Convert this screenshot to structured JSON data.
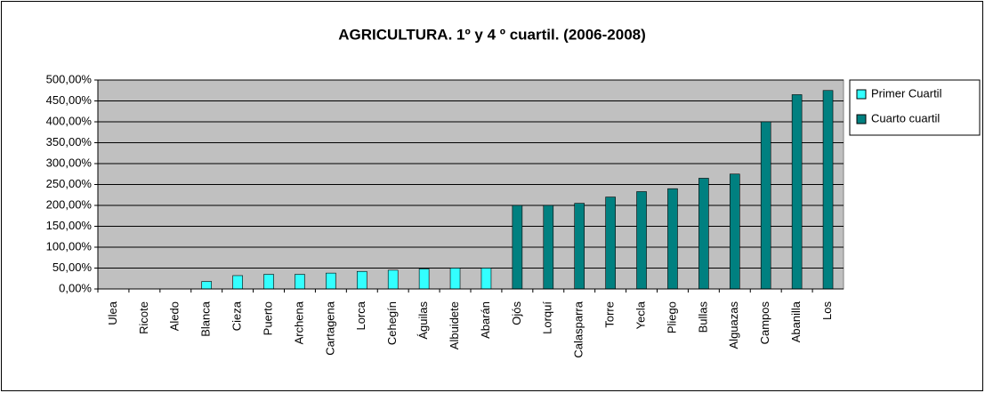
{
  "chart_data": {
    "type": "bar",
    "title": "AGRICULTURA. 1º y 4 º cuartil. (2006-2008)",
    "categories": [
      "Ulea",
      "Ricote",
      "Aledo",
      "Blanca",
      "Cieza",
      "Puerto",
      "Archena",
      "Cartagena",
      "Lorca",
      "Cehegín",
      "Águilas",
      "Albuidete",
      "Abarán",
      "Ojós",
      "Lorquí",
      "Calasparra",
      "Torre",
      "Yecla",
      "Pliego",
      "Bullas",
      "Alguazas",
      "Campos",
      "Abanilla",
      "Los"
    ],
    "series": [
      {
        "name": "Primer Cuartil",
        "color": "#33ffff",
        "values": [
          0,
          0,
          0,
          18,
          32,
          35,
          35,
          38,
          42,
          45,
          48,
          50,
          50,
          null,
          null,
          null,
          null,
          null,
          null,
          null,
          null,
          null,
          null,
          null
        ]
      },
      {
        "name": "Cuarto cuartil",
        "color": "#008080",
        "values": [
          null,
          null,
          null,
          null,
          null,
          null,
          null,
          null,
          null,
          null,
          null,
          null,
          null,
          200,
          200,
          205,
          220,
          233,
          240,
          265,
          275,
          400,
          465,
          475
        ]
      }
    ],
    "ylim": [
      0,
      500
    ],
    "yticks": [
      {
        "value": 0,
        "label": "0,00%"
      },
      {
        "value": 50,
        "label": "50,00%"
      },
      {
        "value": 100,
        "label": "100,00%"
      },
      {
        "value": 150,
        "label": "150,00%"
      },
      {
        "value": 200,
        "label": "200,00%"
      },
      {
        "value": 250,
        "label": "250,00%"
      },
      {
        "value": 300,
        "label": "300,00%"
      },
      {
        "value": 350,
        "label": "350,00%"
      },
      {
        "value": 400,
        "label": "400,00%"
      },
      {
        "value": 450,
        "label": "450,00%"
      },
      {
        "value": 500,
        "label": "500,00%"
      }
    ],
    "grid": true,
    "legend": "right"
  }
}
